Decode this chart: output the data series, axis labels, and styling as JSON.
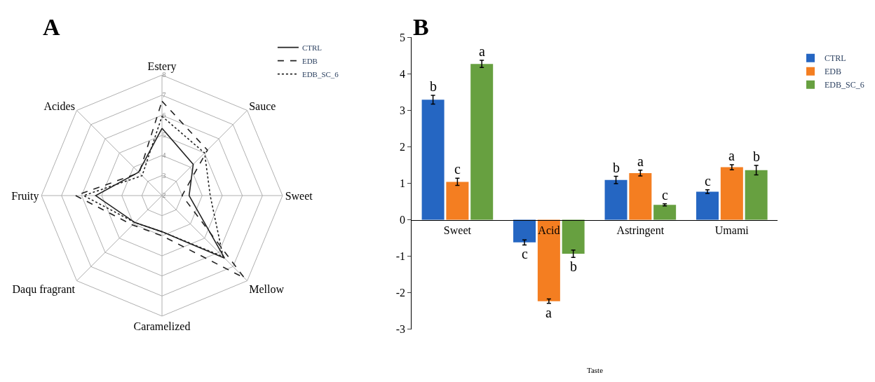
{
  "chart_data": [
    {
      "type": "radar",
      "title": "A",
      "categories": [
        "Estery",
        "Sauce",
        "Sweet",
        "Mellow",
        "Caramelized",
        "Daqu fragrant",
        "Fruity",
        "Acides"
      ],
      "ylim": [
        2,
        8
      ],
      "yticks": [
        2,
        3,
        4,
        5,
        6,
        7,
        8
      ],
      "grid": true,
      "legend": "top right",
      "marker": "none",
      "series": [
        {
          "name": "CTRL",
          "color": "#222222",
          "line_style": "solid",
          "values": [
            5.35,
            4.2,
            3.35,
            6.4,
            3.8,
            3.9,
            5.3,
            3.65
          ]
        },
        {
          "name": "EDB",
          "color": "#222222",
          "line_style": "dashed",
          "values": [
            6.7,
            5.2,
            3.0,
            7.8,
            4.0,
            4.07,
            6.3,
            3.6
          ]
        },
        {
          "name": "EDB_SC_6",
          "color": "#222222",
          "line_style": "dotted",
          "values": [
            5.95,
            5.0,
            4.4,
            6.3,
            3.8,
            3.9,
            5.9,
            3.4
          ]
        }
      ]
    },
    {
      "type": "bar",
      "title": "B",
      "xlabel": "Taste",
      "categories": [
        "Sweet",
        "Acid",
        "Astringent",
        "Umami"
      ],
      "ylim": [
        -3,
        5
      ],
      "yticks": [
        -3,
        -2,
        -1,
        0,
        1,
        2,
        3,
        4,
        5
      ],
      "grid": false,
      "legend": "top right",
      "series": [
        {
          "name": "CTRL",
          "color": "#2566c2",
          "values": [
            3.29,
            -0.62,
            1.09,
            0.77
          ],
          "errors": [
            0.12,
            0.07,
            0.1,
            0.05
          ],
          "value_labels": [
            "b",
            "c",
            "b",
            "c"
          ]
        },
        {
          "name": "EDB",
          "color": "#f47e21",
          "values": [
            1.04,
            -2.23,
            1.28,
            1.44
          ],
          "errors": [
            0.1,
            0.06,
            0.08,
            0.07
          ],
          "value_labels": [
            "c",
            "a",
            "a",
            "a"
          ]
        },
        {
          "name": "EDB_SC_6",
          "color": "#67a040",
          "values": [
            4.27,
            -0.93,
            0.41,
            1.36
          ],
          "errors": [
            0.1,
            0.1,
            0.03,
            0.13
          ],
          "value_labels": [
            "a",
            "b",
            "c",
            "b"
          ]
        }
      ]
    }
  ]
}
